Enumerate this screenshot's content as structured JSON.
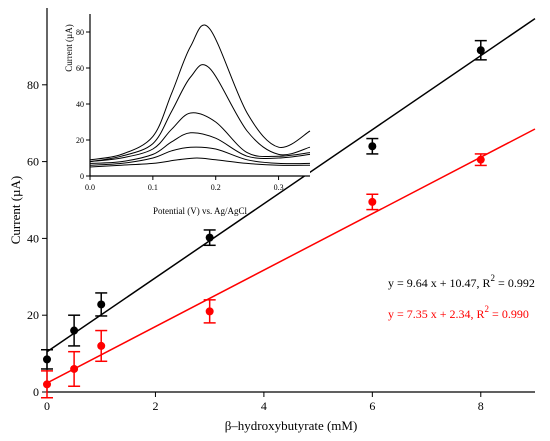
{
  "chart_data": [
    {
      "type": "scatter",
      "xlabel": "β–hydroxybutyrate (mM)",
      "ylabel": "Current (µA)",
      "xlim": [
        0,
        9
      ],
      "ylim": [
        0,
        100
      ],
      "xticks": [
        "0",
        "2",
        "4",
        "6",
        "8"
      ],
      "yticks": [
        "0",
        "20",
        "40",
        "60",
        "80"
      ],
      "grid": false,
      "series": [
        {
          "color": "#000000",
          "x": [
            0,
            0.5,
            1,
            3,
            6,
            8
          ],
          "y": [
            8.5,
            16,
            22.8,
            40.2,
            64,
            89
          ],
          "error": [
            2.5,
            4,
            3,
            2,
            2,
            2.5
          ],
          "fit": {
            "slope": 9.64,
            "intercept": 10.47,
            "x_range": [
              0,
              9
            ]
          },
          "equation": "y = 9.64 x + 10.47, R",
          "r2_value": " = 0.992"
        },
        {
          "color": "#ff0000",
          "x": [
            0,
            0.5,
            1,
            3,
            6,
            8
          ],
          "y": [
            2,
            6,
            12,
            21,
            49.5,
            60.5
          ],
          "error": [
            3.5,
            4.5,
            4,
            3,
            2,
            1.5
          ],
          "fit": {
            "slope": 7.35,
            "intercept": 2.34,
            "x_range": [
              0,
              9
            ]
          },
          "equation": "y = 7.35 x + 2.34, R",
          "r2_value": " = 0.990"
        }
      ],
      "r2_superscript": "2"
    },
    {
      "type": "line",
      "xlabel": "Potential (V) vs. Ag/AgCl",
      "ylabel": "Current (µA)",
      "xlim": [
        0,
        0.35
      ],
      "ylim": [
        0,
        90
      ],
      "xticks": [
        "0.0",
        "0.1",
        "0.2",
        "0.3"
      ],
      "yticks": [
        "0",
        "20",
        "40",
        "60",
        "80"
      ],
      "color": "#000000",
      "series": [
        {
          "x": [
            0,
            0.05,
            0.1,
            0.14,
            0.17,
            0.2,
            0.25,
            0.3,
            0.35
          ],
          "y": [
            5,
            6,
            7,
            9,
            10,
            9,
            7,
            6,
            6
          ]
        },
        {
          "x": [
            0,
            0.05,
            0.1,
            0.13,
            0.16,
            0.2,
            0.25,
            0.3,
            0.35
          ],
          "y": [
            6,
            7,
            10,
            14,
            16,
            15,
            9,
            7,
            7
          ]
        },
        {
          "x": [
            0,
            0.05,
            0.1,
            0.13,
            0.16,
            0.2,
            0.25,
            0.3,
            0.35
          ],
          "y": [
            7,
            8,
            12,
            19,
            24,
            21,
            11,
            10,
            12
          ]
        },
        {
          "x": [
            0,
            0.05,
            0.1,
            0.13,
            0.16,
            0.2,
            0.25,
            0.3,
            0.35
          ],
          "y": [
            8,
            10,
            15,
            26,
            35,
            30,
            13,
            11,
            13
          ]
        },
        {
          "x": [
            0,
            0.05,
            0.1,
            0.13,
            0.16,
            0.19,
            0.25,
            0.3,
            0.35
          ],
          "y": [
            8,
            11,
            18,
            36,
            55,
            60,
            25,
            12,
            16
          ]
        },
        {
          "x": [
            0,
            0.05,
            0.1,
            0.13,
            0.16,
            0.19,
            0.25,
            0.3,
            0.35
          ],
          "y": [
            9,
            12,
            22,
            46,
            72,
            82,
            35,
            16,
            25
          ]
        }
      ]
    }
  ]
}
